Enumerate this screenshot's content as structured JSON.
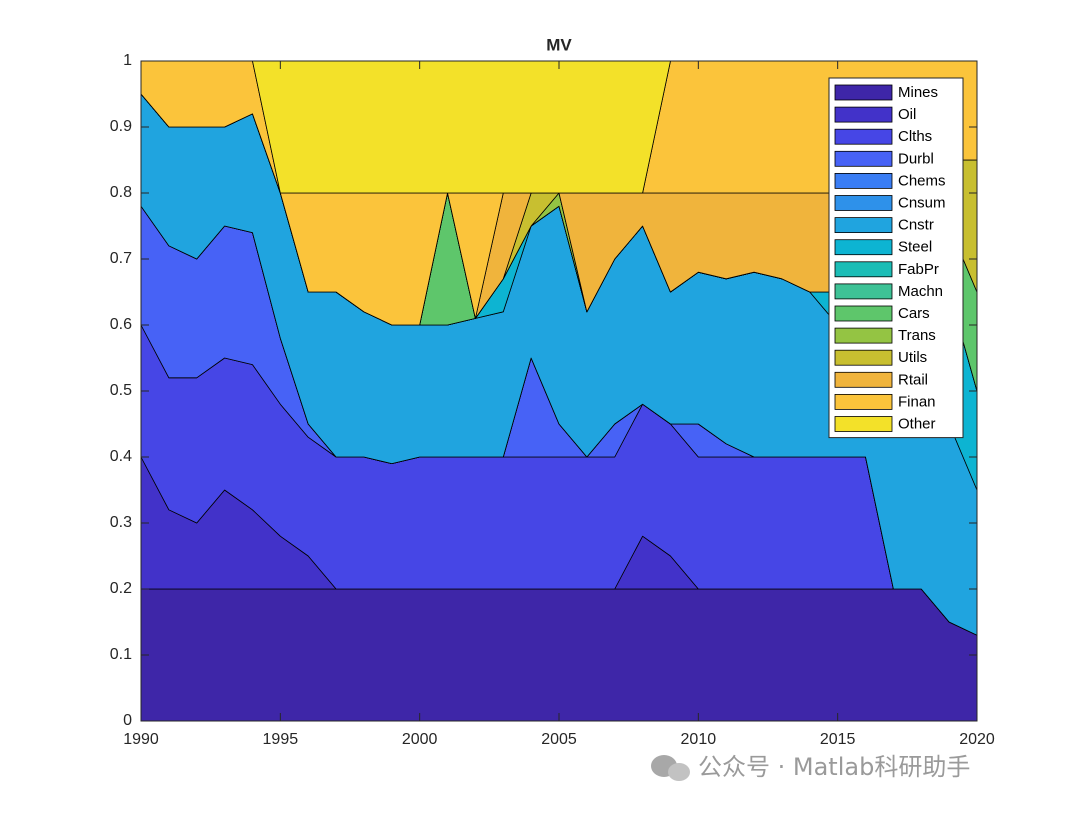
{
  "chart_data": {
    "type": "stacked_area",
    "title": "MV",
    "x": [
      1990,
      1991,
      1992,
      1993,
      1994,
      1995,
      1996,
      1997,
      1998,
      1999,
      2000,
      2001,
      2002,
      2003,
      2004,
      2005,
      2006,
      2007,
      2008,
      2009,
      2010,
      2011,
      2012,
      2013,
      2014,
      2015,
      2016,
      2017,
      2018,
      2019,
      2020
    ],
    "xlim": [
      1990,
      2020
    ],
    "xticks": [
      1990,
      1995,
      2000,
      2005,
      2010,
      2015,
      2020
    ],
    "ylim": [
      0,
      1
    ],
    "yticks": [
      0,
      0.1,
      0.2,
      0.3,
      0.4,
      0.5,
      0.6,
      0.7,
      0.8,
      0.9,
      1
    ],
    "legend": "upper right",
    "series": [
      {
        "name": "Mines",
        "color": "#3e26a8",
        "values": [
          0.2,
          0.2,
          0.2,
          0.2,
          0.2,
          0.2,
          0.2,
          0.2,
          0.2,
          0.2,
          0.2,
          0.2,
          0.2,
          0.2,
          0.2,
          0.2,
          0.2,
          0.2,
          0.2,
          0.2,
          0.2,
          0.2,
          0.2,
          0.2,
          0.2,
          0.2,
          0.2,
          0.2,
          0.2,
          0.15,
          0.13
        ]
      },
      {
        "name": "Oil",
        "color": "#4232c9",
        "values": [
          0.2,
          0.12,
          0.1,
          0.15,
          0.12,
          0.08,
          0.05,
          0,
          0,
          0,
          0,
          0,
          0,
          0,
          0,
          0,
          0,
          0,
          0.08,
          0.05,
          0,
          0,
          0,
          0,
          0,
          0,
          0,
          0,
          0,
          0,
          0
        ]
      },
      {
        "name": "Clths",
        "color": "#4646e6",
        "values": [
          0.2,
          0.2,
          0.22,
          0.2,
          0.22,
          0.2,
          0.18,
          0.2,
          0.2,
          0.19,
          0.2,
          0.2,
          0.2,
          0.2,
          0.2,
          0.2,
          0.2,
          0.2,
          0.2,
          0.2,
          0.2,
          0.2,
          0.2,
          0.2,
          0.2,
          0.2,
          0.2,
          0,
          0,
          0,
          0
        ]
      },
      {
        "name": "Durbl",
        "color": "#4762f6",
        "values": [
          0.18,
          0.2,
          0.18,
          0.2,
          0.2,
          0.1,
          0.02,
          0,
          0,
          0,
          0,
          0,
          0,
          0,
          0.15,
          0.05,
          0,
          0.05,
          0,
          0,
          0.05,
          0.02,
          0,
          0,
          0,
          0,
          0,
          0,
          0,
          0,
          0
        ]
      },
      {
        "name": "Chems",
        "color": "#3a7df4",
        "values": [
          0,
          0,
          0,
          0,
          0,
          0,
          0,
          0,
          0,
          0,
          0,
          0,
          0,
          0,
          0,
          0,
          0,
          0,
          0,
          0,
          0,
          0,
          0,
          0,
          0,
          0,
          0,
          0,
          0,
          0,
          0
        ]
      },
      {
        "name": "Cnsum",
        "color": "#2e91ea",
        "values": [
          0,
          0,
          0,
          0,
          0,
          0,
          0,
          0,
          0,
          0,
          0,
          0,
          0,
          0,
          0,
          0,
          0,
          0,
          0,
          0,
          0,
          0,
          0,
          0,
          0,
          0,
          0,
          0,
          0,
          0,
          0
        ]
      },
      {
        "name": "Cnstr",
        "color": "#20a4df",
        "values": [
          0.17,
          0.18,
          0.2,
          0.15,
          0.18,
          0.22,
          0.2,
          0.25,
          0.22,
          0.21,
          0.2,
          0.2,
          0.21,
          0.22,
          0.2,
          0.33,
          0.22,
          0.25,
          0.27,
          0.2,
          0.23,
          0.25,
          0.28,
          0.27,
          0.25,
          0.2,
          0.3,
          0.4,
          0.25,
          0.3,
          0.22
        ]
      },
      {
        "name": "Steel",
        "color": "#0db4d2",
        "values": [
          0,
          0,
          0,
          0,
          0,
          0,
          0,
          0,
          0,
          0,
          0,
          0,
          0,
          0.05,
          0,
          0,
          0,
          0,
          0,
          0,
          0,
          0,
          0,
          0,
          0,
          0.05,
          0.1,
          0.2,
          0.3,
          0.2,
          0.15
        ]
      },
      {
        "name": "FabPr",
        "color": "#1cbdb6",
        "values": [
          0,
          0,
          0,
          0,
          0,
          0,
          0,
          0,
          0,
          0,
          0,
          0,
          0,
          0,
          0,
          0,
          0,
          0,
          0,
          0,
          0,
          0,
          0,
          0,
          0,
          0,
          0,
          0,
          0,
          0,
          0
        ]
      },
      {
        "name": "Machn",
        "color": "#3ec296",
        "values": [
          0,
          0,
          0,
          0,
          0,
          0,
          0,
          0,
          0,
          0,
          0,
          0,
          0,
          0,
          0,
          0,
          0,
          0,
          0,
          0,
          0,
          0,
          0,
          0,
          0,
          0,
          0,
          0,
          0,
          0,
          0
        ]
      },
      {
        "name": "Cars",
        "color": "#5ec66b",
        "values": [
          0,
          0,
          0,
          0,
          0,
          0,
          0,
          0,
          0,
          0,
          0,
          0.2,
          0,
          0,
          0,
          0,
          0,
          0,
          0,
          0,
          0,
          0,
          0,
          0,
          0,
          0,
          0,
          0,
          0,
          0.1,
          0.15
        ]
      },
      {
        "name": "Trans",
        "color": "#94c443",
        "values": [
          0,
          0,
          0,
          0,
          0,
          0,
          0,
          0,
          0,
          0,
          0,
          0,
          0,
          0,
          0,
          0.02,
          0,
          0,
          0,
          0,
          0,
          0,
          0,
          0,
          0,
          0,
          0,
          0,
          0,
          0,
          0
        ]
      },
      {
        "name": "Utils",
        "color": "#c8bf30",
        "values": [
          0,
          0,
          0,
          0,
          0,
          0,
          0,
          0,
          0,
          0,
          0,
          0,
          0,
          0,
          0.05,
          0,
          0,
          0,
          0,
          0,
          0,
          0,
          0,
          0,
          0,
          0,
          0,
          0,
          0.05,
          0.1,
          0.2
        ]
      },
      {
        "name": "Rtail",
        "color": "#f0b43c",
        "values": [
          0,
          0,
          0,
          0,
          0,
          0,
          0,
          0,
          0,
          0,
          0,
          0,
          0,
          0.13,
          0,
          0,
          0.18,
          0.1,
          0.05,
          0.15,
          0.12,
          0.13,
          0.12,
          0.13,
          0.15,
          0.15,
          0,
          0,
          0,
          0,
          0
        ]
      },
      {
        "name": "Finan",
        "color": "#fbc43b",
        "values": [
          0.05,
          0.1,
          0.1,
          0.1,
          0.08,
          0,
          0.15,
          0.15,
          0.18,
          0.2,
          0.2,
          0,
          0.19,
          0,
          0,
          0,
          0,
          0,
          0,
          0.2,
          0.2,
          0.2,
          0.2,
          0.2,
          0.2,
          0.2,
          0.2,
          0.2,
          0.2,
          0.15,
          0.15
        ]
      },
      {
        "name": "Other",
        "color": "#f3e129",
        "values": [
          0,
          0,
          0,
          0,
          0,
          0.2,
          0.2,
          0.2,
          0.2,
          0.2,
          0.2,
          0.2,
          0.2,
          0.2,
          0.2,
          0.2,
          0.2,
          0.2,
          0.2,
          0,
          0,
          0,
          0,
          0,
          0,
          0,
          0,
          0,
          0,
          0,
          0
        ]
      }
    ],
    "watermark": "公众号 · Matlab科研助手"
  }
}
